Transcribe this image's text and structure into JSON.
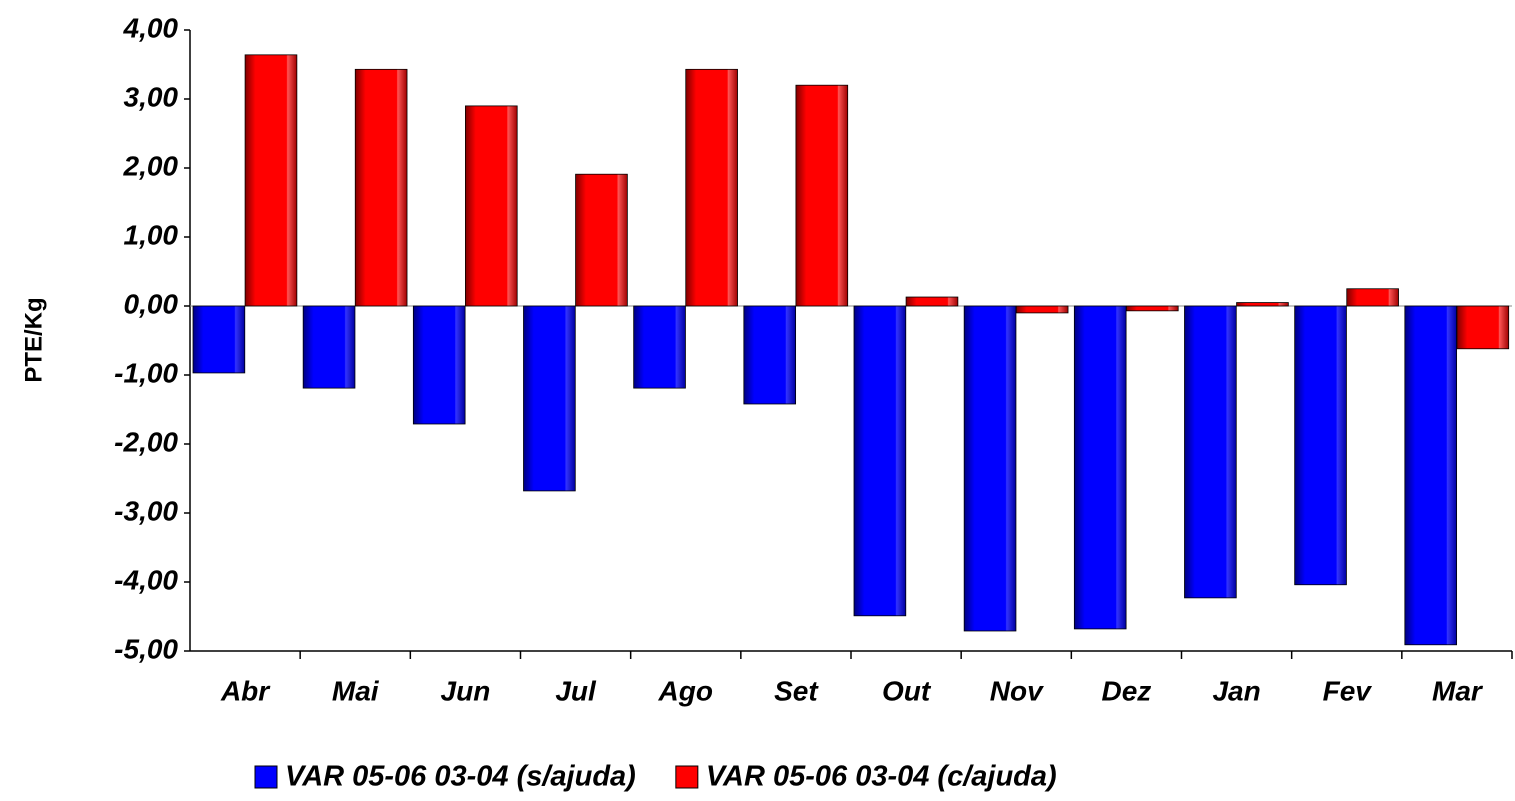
{
  "chart_data": {
    "type": "bar",
    "y_label": "PTE/Kg",
    "categories": [
      "Abr",
      "Mai",
      "Jun",
      "Jul",
      "Ago",
      "Set",
      "Out",
      "Nov",
      "Dez",
      "Jan",
      "Fev",
      "Mar"
    ],
    "series": [
      {
        "name": "VAR 05-06 03-04 (s/ajuda)",
        "color": "#0000ff",
        "values": [
          -0.97,
          -1.19,
          -1.71,
          -2.68,
          -1.19,
          -1.42,
          -4.49,
          -4.71,
          -4.68,
          -4.23,
          -4.04,
          -4.91
        ]
      },
      {
        "name": "VAR 05-06 03-04 (c/ajuda)",
        "color": "#ff0000",
        "values": [
          3.64,
          3.43,
          2.9,
          1.91,
          3.43,
          3.2,
          0.13,
          -0.1,
          -0.07,
          0.05,
          0.25,
          -0.62
        ]
      }
    ],
    "ylim": [
      -5,
      4
    ],
    "yticks": [
      {
        "value": -5,
        "label": "-5,00"
      },
      {
        "value": -4,
        "label": "-4,00"
      },
      {
        "value": -3,
        "label": "-3,00"
      },
      {
        "value": -2,
        "label": "-2,00"
      },
      {
        "value": -1,
        "label": "-1,00"
      },
      {
        "value": 0,
        "label": "0,00"
      },
      {
        "value": 1,
        "label": "1,00"
      },
      {
        "value": 2,
        "label": "2,00"
      },
      {
        "value": 3,
        "label": "3,00"
      },
      {
        "value": 4,
        "label": "4,00"
      }
    ],
    "legend": "bottom"
  }
}
